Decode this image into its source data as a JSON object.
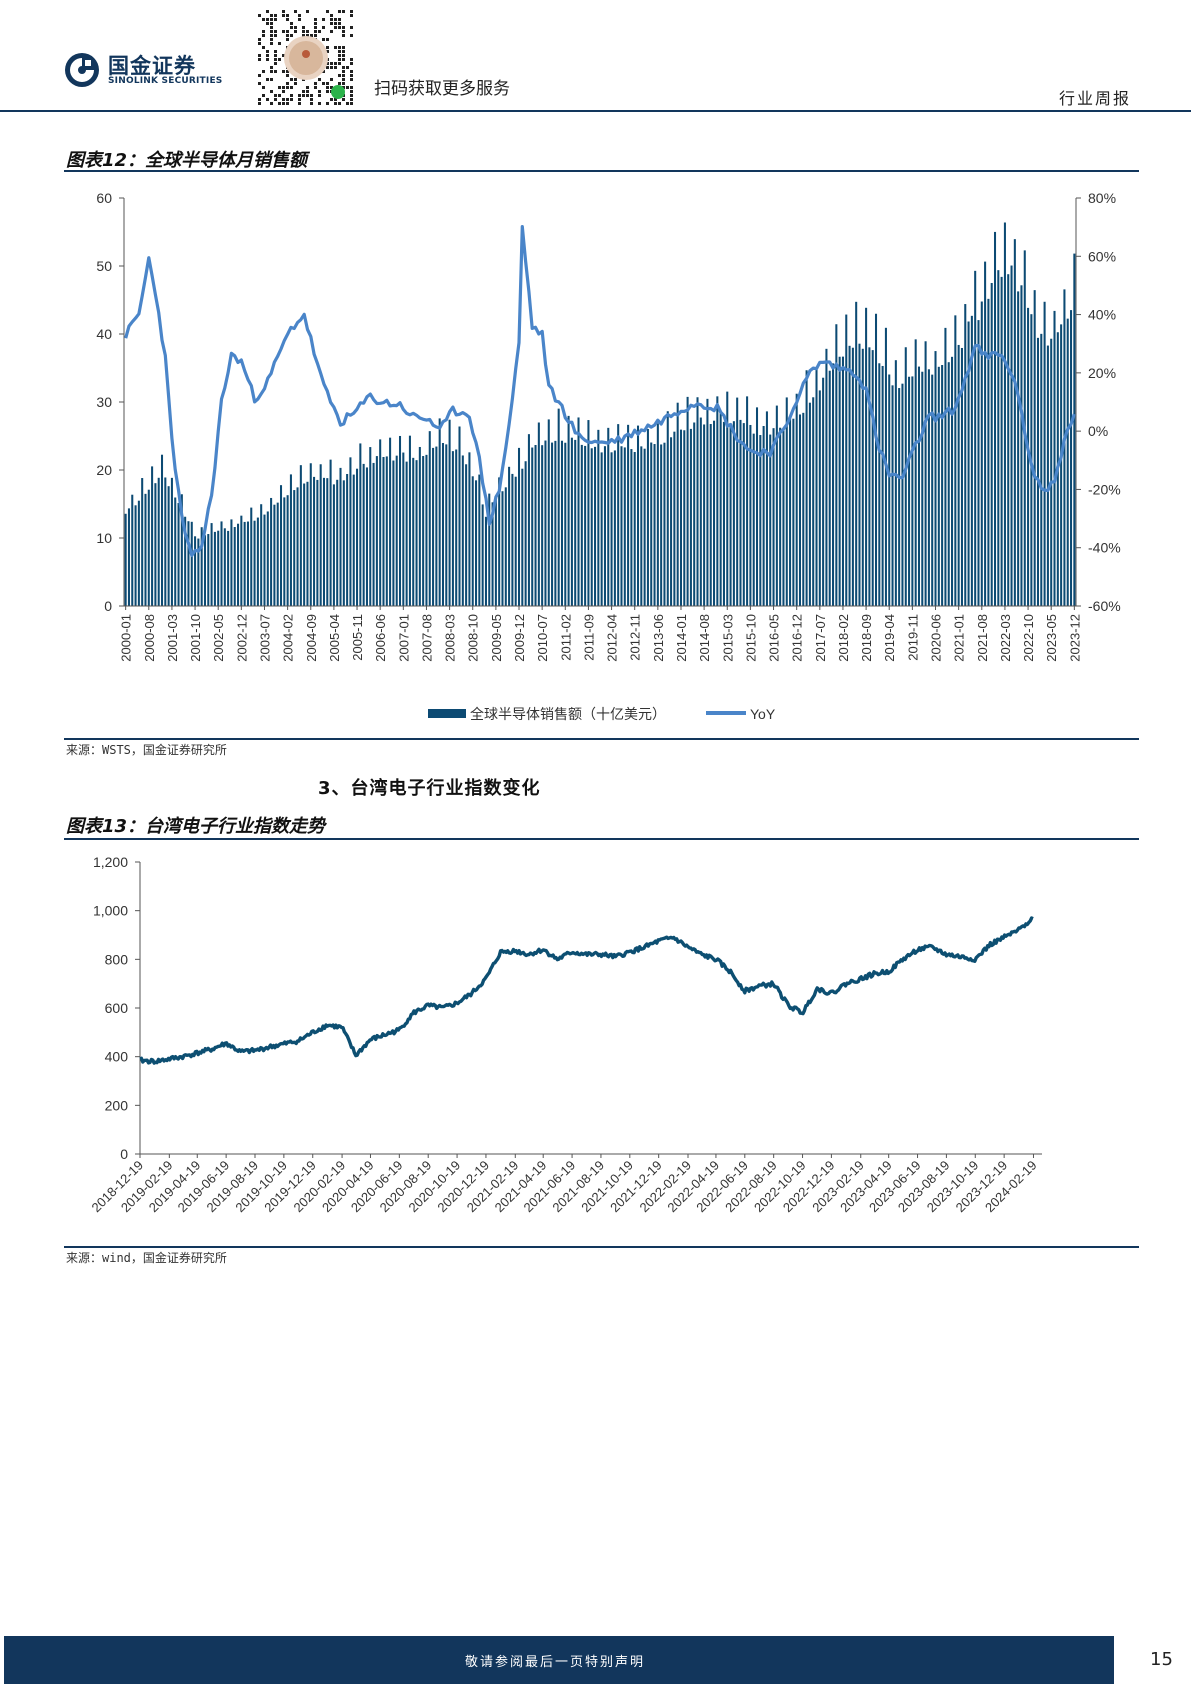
{
  "header": {
    "logo_cn": "国金证券",
    "logo_en": "SINOLINK SECURITIES",
    "qr_label": "扫码获取更多服务",
    "doc_type": "行业周报"
  },
  "figure12": {
    "title": "图表12：全球半导体月销售额",
    "source": "来源：WSTS，国金证券研究所"
  },
  "section": {
    "title": "3、台湾电子行业指数变化"
  },
  "figure13": {
    "title": "图表13：台湾电子行业指数走势",
    "source": "来源：wind，国金证券研究所"
  },
  "footer": {
    "disclaimer": "敬请参阅最后一页特别声明",
    "page_number": "15"
  },
  "colors": {
    "brand": "#12365c",
    "bar": "#0c4a73",
    "yoy_line": "#4a85c9",
    "index_line": "#0d4f72"
  },
  "chart_data": [
    {
      "type": "bar",
      "title": "",
      "xlabel": "",
      "ylabel": "",
      "ylim": [
        0,
        60
      ],
      "y2lim": [
        -60,
        80
      ],
      "y_ticks": [
        "0",
        "10",
        "20",
        "30",
        "40",
        "50",
        "60"
      ],
      "y2_ticks": [
        "-60%",
        "-40%",
        "-20%",
        "0%",
        "20%",
        "40%",
        "60%",
        "80%"
      ],
      "x_ticks": [
        "2000-01",
        "2000-08",
        "2001-03",
        "2001-10",
        "2002-05",
        "2002-12",
        "2003-07",
        "2004-02",
        "2004-09",
        "2005-04",
        "2005-11",
        "2006-06",
        "2007-01",
        "2007-08",
        "2008-03",
        "2008-10",
        "2009-05",
        "2009-12",
        "2010-07",
        "2011-02",
        "2011-09",
        "2012-04",
        "2012-11",
        "2013-06",
        "2014-01",
        "2014-08",
        "2015-03",
        "2015-10",
        "2016-05",
        "2016-12",
        "2017-07",
        "2018-02",
        "2018-09",
        "2019-04",
        "2019-11",
        "2020-06",
        "2021-01",
        "2021-08",
        "2022-03",
        "2022-10",
        "2023-05",
        "2023-12"
      ],
      "legend_position": "bottom",
      "series": [
        {
          "name": "全球半导体销售额（十亿美元）",
          "kind": "bar",
          "axis": "left",
          "x_start": "2000-01",
          "frequency": "monthly",
          "anchors": [
            [
              "2000-01",
              14
            ],
            [
              "2000-06",
              17
            ],
            [
              "2000-12",
              20
            ],
            [
              "2001-06",
              15
            ],
            [
              "2001-10",
              10.5
            ],
            [
              "2002-06",
              11.5
            ],
            [
              "2002-12",
              12.5
            ],
            [
              "2003-06",
              13.5
            ],
            [
              "2003-12",
              16
            ],
            [
              "2004-06",
              19
            ],
            [
              "2004-12",
              19.5
            ],
            [
              "2005-06",
              19
            ],
            [
              "2005-12",
              21.5
            ],
            [
              "2006-06",
              22.5
            ],
            [
              "2006-12",
              23
            ],
            [
              "2007-06",
              22
            ],
            [
              "2007-12",
              25
            ],
            [
              "2008-06",
              24
            ],
            [
              "2008-12",
              18
            ],
            [
              "2009-02",
              14
            ],
            [
              "2009-06",
              17
            ],
            [
              "2009-12",
              21
            ],
            [
              "2010-06",
              25
            ],
            [
              "2010-12",
              26
            ],
            [
              "2011-06",
              25
            ],
            [
              "2011-12",
              24
            ],
            [
              "2012-06",
              24
            ],
            [
              "2012-12",
              24
            ],
            [
              "2013-06",
              25
            ],
            [
              "2013-12",
              27
            ],
            [
              "2014-06",
              28
            ],
            [
              "2014-12",
              29
            ],
            [
              "2015-06",
              28
            ],
            [
              "2015-12",
              27
            ],
            [
              "2016-06",
              26.5
            ],
            [
              "2016-12",
              29
            ],
            [
              "2017-06",
              33
            ],
            [
              "2017-12",
              38
            ],
            [
              "2018-06",
              40
            ],
            [
              "2018-12",
              39
            ],
            [
              "2019-06",
              34
            ],
            [
              "2019-12",
              36
            ],
            [
              "2020-06",
              35
            ],
            [
              "2020-12",
              39
            ],
            [
              "2021-06",
              44
            ],
            [
              "2021-12",
              50
            ],
            [
              "2022-03",
              52
            ],
            [
              "2022-06",
              51
            ],
            [
              "2022-12",
              43
            ],
            [
              "2023-03",
              40
            ],
            [
              "2023-06",
              41
            ],
            [
              "2023-09",
              44
            ],
            [
              "2023-12",
              48
            ]
          ]
        },
        {
          "name": "YoY",
          "kind": "line",
          "axis": "right",
          "x_start": "2000-01",
          "frequency": "monthly",
          "anchors": [
            [
              "2000-01",
              33
            ],
            [
              "2000-05",
              40
            ],
            [
              "2000-08",
              59
            ],
            [
              "2000-10",
              48
            ],
            [
              "2001-01",
              25
            ],
            [
              "2001-03",
              -3
            ],
            [
              "2001-06",
              -30
            ],
            [
              "2001-09",
              -44
            ],
            [
              "2001-12",
              -39
            ],
            [
              "2002-03",
              -22
            ],
            [
              "2002-06",
              10
            ],
            [
              "2002-09",
              26
            ],
            [
              "2002-12",
              24
            ],
            [
              "2003-04",
              11
            ],
            [
              "2003-08",
              17
            ],
            [
              "2003-12",
              28
            ],
            [
              "2004-03",
              35
            ],
            [
              "2004-07",
              40
            ],
            [
              "2004-10",
              27
            ],
            [
              "2005-01",
              15
            ],
            [
              "2005-06",
              3
            ],
            [
              "2005-10",
              6
            ],
            [
              "2006-03",
              12
            ],
            [
              "2006-06",
              10
            ],
            [
              "2006-12",
              9
            ],
            [
              "2007-04",
              5
            ],
            [
              "2007-09",
              4
            ],
            [
              "2007-12",
              0
            ],
            [
              "2008-04",
              7
            ],
            [
              "2008-09",
              6
            ],
            [
              "2008-12",
              -10
            ],
            [
              "2009-03",
              -31
            ],
            [
              "2009-06",
              -20
            ],
            [
              "2009-09",
              2
            ],
            [
              "2009-12",
              30
            ],
            [
              "2010-01",
              70
            ],
            [
              "2010-04",
              36
            ],
            [
              "2010-07",
              33
            ],
            [
              "2010-09",
              15
            ],
            [
              "2011-01",
              8
            ],
            [
              "2011-06",
              -2
            ],
            [
              "2011-12",
              -4
            ],
            [
              "2012-06",
              -3
            ],
            [
              "2012-12",
              0
            ],
            [
              "2013-06",
              3
            ],
            [
              "2013-12",
              7
            ],
            [
              "2014-06",
              10
            ],
            [
              "2014-12",
              8
            ],
            [
              "2015-06",
              -2
            ],
            [
              "2015-10",
              -7
            ],
            [
              "2016-04",
              -7
            ],
            [
              "2016-08",
              0
            ],
            [
              "2016-12",
              11
            ],
            [
              "2017-04",
              20
            ],
            [
              "2017-08",
              24
            ],
            [
              "2017-12",
              22
            ],
            [
              "2018-06",
              20
            ],
            [
              "2018-09",
              14
            ],
            [
              "2019-01",
              -6
            ],
            [
              "2019-04",
              -15
            ],
            [
              "2019-08",
              -16
            ],
            [
              "2019-12",
              -5
            ],
            [
              "2020-04",
              5
            ],
            [
              "2020-08",
              5
            ],
            [
              "2020-12",
              8
            ],
            [
              "2021-03",
              18
            ],
            [
              "2021-06",
              29
            ],
            [
              "2021-10",
              25
            ],
            [
              "2022-01",
              27
            ],
            [
              "2022-06",
              18
            ],
            [
              "2022-09",
              -1
            ],
            [
              "2022-12",
              -15
            ],
            [
              "2023-03",
              -21
            ],
            [
              "2023-06",
              -17
            ],
            [
              "2023-09",
              -3
            ],
            [
              "2023-12",
              5
            ]
          ]
        }
      ]
    },
    {
      "type": "line",
      "title": "",
      "xlabel": "",
      "ylabel": "",
      "ylim": [
        0,
        1200
      ],
      "y_ticks": [
        "0",
        "200",
        "400",
        "600",
        "800",
        "1,000",
        "1,200"
      ],
      "x_ticks": [
        "2018-12-19",
        "2019-02-19",
        "2019-04-19",
        "2019-06-19",
        "2019-08-19",
        "2019-10-19",
        "2019-12-19",
        "2020-02-19",
        "2020-04-19",
        "2020-06-19",
        "2020-08-19",
        "2020-10-19",
        "2020-12-19",
        "2021-02-19",
        "2021-04-19",
        "2021-06-19",
        "2021-08-19",
        "2021-10-19",
        "2021-12-19",
        "2022-02-19",
        "2022-04-19",
        "2022-06-19",
        "2022-08-19",
        "2022-10-19",
        "2022-12-19",
        "2023-02-19",
        "2023-04-19",
        "2023-06-19",
        "2023-08-19",
        "2023-10-19",
        "2023-12-19",
        "2024-02-19"
      ],
      "series": [
        {
          "name": "",
          "anchors": [
            [
              "2018-12-19",
              385
            ],
            [
              "2019-01-19",
              380
            ],
            [
              "2019-03-19",
              400
            ],
            [
              "2019-05-19",
              430
            ],
            [
              "2019-06-19",
              455
            ],
            [
              "2019-07-19",
              420
            ],
            [
              "2019-08-19",
              425
            ],
            [
              "2019-09-19",
              440
            ],
            [
              "2019-11-19",
              465
            ],
            [
              "2019-12-19",
              500
            ],
            [
              "2020-01-19",
              530
            ],
            [
              "2020-02-19",
              520
            ],
            [
              "2020-03-19",
              405
            ],
            [
              "2020-04-19",
              470
            ],
            [
              "2020-06-19",
              510
            ],
            [
              "2020-07-19",
              580
            ],
            [
              "2020-08-19",
              610
            ],
            [
              "2020-09-19",
              600
            ],
            [
              "2020-10-19",
              620
            ],
            [
              "2020-11-19",
              660
            ],
            [
              "2020-12-19",
              720
            ],
            [
              "2021-01-19",
              830
            ],
            [
              "2021-02-19",
              835
            ],
            [
              "2021-03-19",
              820
            ],
            [
              "2021-04-19",
              840
            ],
            [
              "2021-05-19",
              800
            ],
            [
              "2021-06-19",
              830
            ],
            [
              "2021-07-19",
              820
            ],
            [
              "2021-08-19",
              820
            ],
            [
              "2021-09-19",
              810
            ],
            [
              "2021-10-19",
              830
            ],
            [
              "2021-11-19",
              850
            ],
            [
              "2021-12-19",
              875
            ],
            [
              "2022-01-19",
              890
            ],
            [
              "2022-02-19",
              850
            ],
            [
              "2022-03-19",
              820
            ],
            [
              "2022-04-19",
              800
            ],
            [
              "2022-05-19",
              750
            ],
            [
              "2022-06-19",
              670
            ],
            [
              "2022-07-19",
              690
            ],
            [
              "2022-08-19",
              700
            ],
            [
              "2022-09-19",
              610
            ],
            [
              "2022-10-19",
              580
            ],
            [
              "2022-11-19",
              680
            ],
            [
              "2022-12-19",
              660
            ],
            [
              "2023-01-19",
              700
            ],
            [
              "2023-02-19",
              720
            ],
            [
              "2023-03-19",
              740
            ],
            [
              "2023-04-19",
              750
            ],
            [
              "2023-05-19",
              800
            ],
            [
              "2023-06-19",
              840
            ],
            [
              "2023-07-19",
              850
            ],
            [
              "2023-08-19",
              820
            ],
            [
              "2023-09-19",
              810
            ],
            [
              "2023-10-19",
              800
            ],
            [
              "2023-11-19",
              860
            ],
            [
              "2023-12-19",
              890
            ],
            [
              "2024-01-19",
              920
            ],
            [
              "2024-02-19",
              975
            ]
          ]
        }
      ]
    }
  ]
}
